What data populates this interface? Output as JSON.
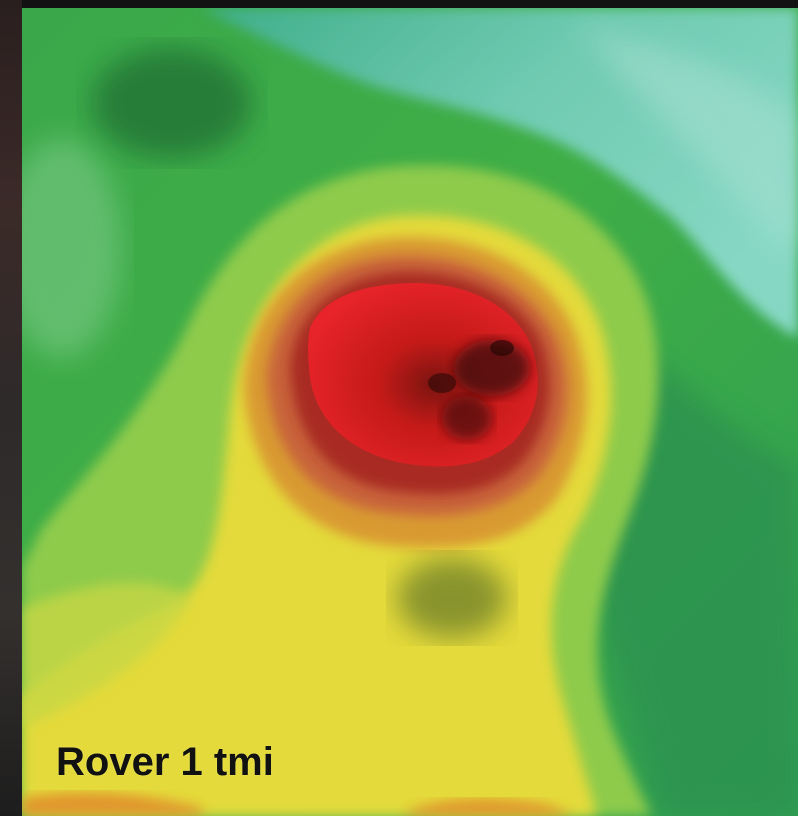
{
  "map": {
    "caption": "Rover 1 tmi",
    "colors": {
      "peak": "#e01a1e",
      "peak_dark": "#8e1410",
      "high": "#c8402a",
      "mid_high": "#d98a2c",
      "mid": "#e8d43a",
      "mid_low": "#9ccc4a",
      "low": "#3fb044",
      "lowest": "#6dcaa6",
      "shadow": "#1a5a2a"
    }
  }
}
